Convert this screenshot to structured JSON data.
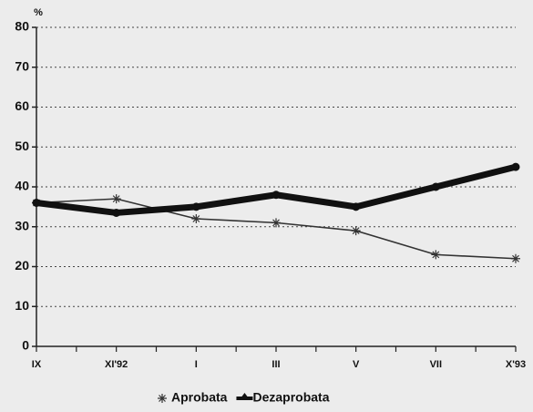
{
  "chart_data": {
    "type": "line",
    "y_label": "%",
    "categories": [
      "IX",
      "XI'92",
      "I",
      "III",
      "V",
      "VII",
      "X'93"
    ],
    "series": [
      {
        "name": "Aprobata",
        "color": "#333333",
        "values": [
          36,
          37,
          32,
          31,
          29,
          23,
          22
        ]
      },
      {
        "name": "Dezaprobata",
        "color": "#111111",
        "values": [
          36,
          33.5,
          35,
          38,
          35,
          40,
          45
        ]
      }
    ],
    "ylim": [
      0,
      80
    ],
    "yticks": [
      0,
      10,
      20,
      30,
      40,
      50,
      60,
      70,
      80
    ],
    "grid": true
  }
}
